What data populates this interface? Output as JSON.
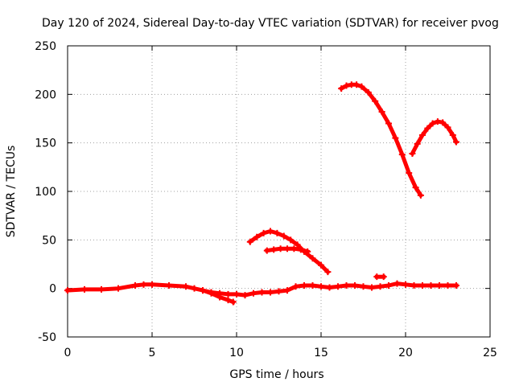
{
  "chart_data": {
    "type": "line",
    "title": "Day 120 of 2024, Sidereal Day-to-day VTEC variation (SDTVAR) for receiver pvog",
    "xlabel": "GPS time / hours",
    "ylabel": "SDTVAR / TECUs",
    "xlim": [
      0,
      25
    ],
    "ylim": [
      -50,
      250
    ],
    "xticks": [
      0,
      5,
      10,
      15,
      20,
      25
    ],
    "yticks": [
      -50,
      0,
      50,
      100,
      150,
      200,
      250
    ],
    "xtick_labels": [
      "0",
      "5",
      "10",
      "15",
      "20",
      "25"
    ],
    "ytick_labels": [
      "-50",
      "0",
      "50",
      "100",
      "150",
      "200",
      "250"
    ],
    "grid": true,
    "series_color": "#ff0000",
    "series": [
      {
        "name": "baseline",
        "x": [
          0,
          1,
          2,
          3,
          4,
          4.5,
          5,
          6,
          7,
          7.5,
          8,
          8.5,
          9,
          9.5,
          10,
          10.5,
          11,
          11.5,
          12,
          12.5,
          13,
          13.5,
          14,
          14.5,
          15,
          15.5,
          16,
          16.5,
          17,
          17.5,
          18,
          18.5,
          19,
          19.5,
          20,
          20.5,
          21,
          21.5,
          22,
          22.5,
          23
        ],
        "y": [
          -2,
          -1,
          -1,
          0,
          3,
          4,
          4,
          3,
          2,
          0,
          -2,
          -4,
          -5,
          -6,
          -6,
          -7,
          -5,
          -4,
          -4,
          -3,
          -2,
          2,
          3,
          3,
          2,
          1,
          2,
          3,
          3,
          2,
          1,
          2,
          3,
          5,
          4,
          3,
          3,
          3,
          3,
          3,
          3
        ]
      },
      {
        "name": "dip-1",
        "x": [
          8.0,
          8.5,
          9.0,
          9.5,
          9.8
        ],
        "y": [
          -2,
          -5,
          -9,
          -12,
          -14
        ]
      },
      {
        "name": "arc-a",
        "x": [
          10.8,
          11.2,
          11.6,
          12.0,
          12.4,
          12.8,
          13.2,
          13.6,
          14.0,
          14.5,
          15.0,
          15.4
        ],
        "y": [
          48,
          53,
          57,
          59,
          57,
          54,
          50,
          45,
          38,
          31,
          24,
          17
        ]
      },
      {
        "name": "arc-b",
        "x": [
          11.8,
          12.2,
          12.6,
          13.0,
          13.4,
          13.8,
          14.2
        ],
        "y": [
          39,
          40,
          41,
          41,
          41,
          40,
          38
        ]
      },
      {
        "name": "arc-c",
        "x": [
          16.2,
          16.5,
          16.8,
          17.1,
          17.4,
          17.8,
          18.2,
          18.6,
          19.0,
          19.4,
          19.8,
          20.2,
          20.6,
          20.9
        ],
        "y": [
          206,
          209,
          210,
          210,
          208,
          202,
          193,
          182,
          170,
          155,
          138,
          119,
          104,
          96
        ]
      },
      {
        "name": "arc-d",
        "x": [
          20.4,
          20.7,
          21.0,
          21.3,
          21.6,
          21.9,
          22.2,
          22.5,
          22.8,
          23.0
        ],
        "y": [
          139,
          149,
          158,
          165,
          170,
          172,
          171,
          166,
          158,
          151
        ]
      },
      {
        "name": "blip",
        "x": [
          18.3,
          18.7
        ],
        "y": [
          12,
          12
        ]
      }
    ]
  }
}
